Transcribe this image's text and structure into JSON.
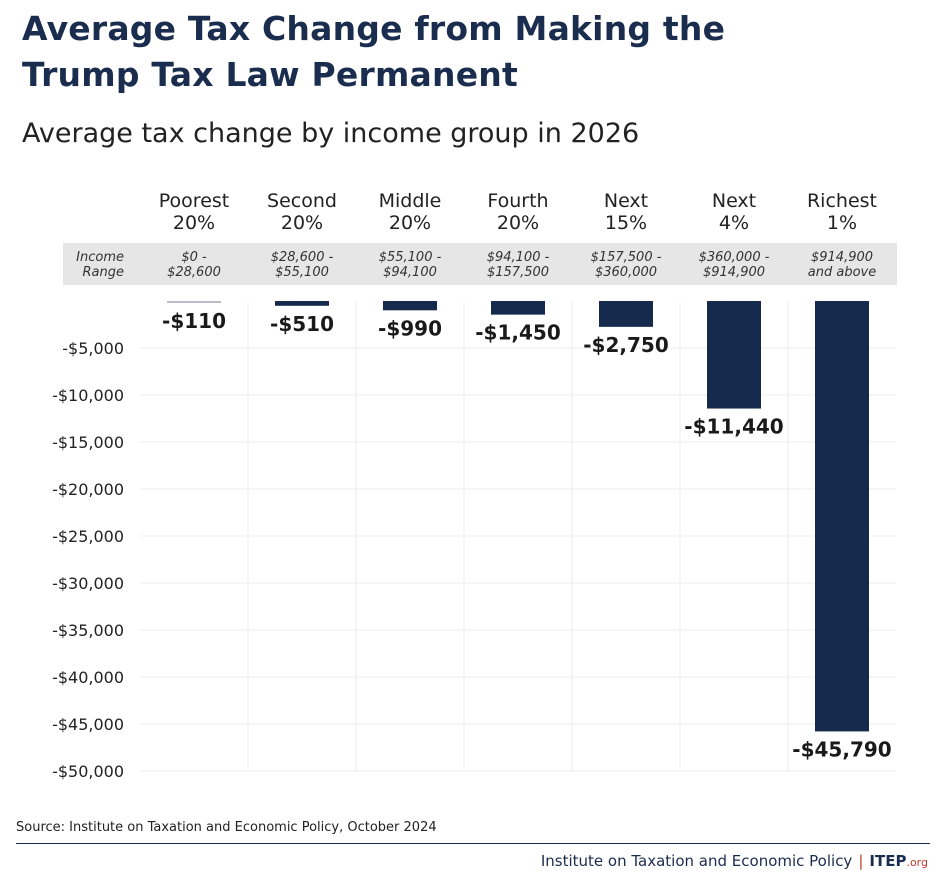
{
  "title_lines": [
    "Average Tax Change from Making the",
    "Trump Tax Law Permanent"
  ],
  "subtitle": "Average tax change by income group in 2026",
  "income_range_label": [
    "Income",
    "Range"
  ],
  "groups": [
    {
      "name": [
        "Poorest",
        "20%"
      ],
      "range": [
        "$0 -",
        "$28,600"
      ]
    },
    {
      "name": [
        "Second",
        "20%"
      ],
      "range": [
        "$28,600 -",
        "$55,100"
      ]
    },
    {
      "name": [
        "Middle",
        "20%"
      ],
      "range": [
        "$55,100 -",
        "$94,100"
      ]
    },
    {
      "name": [
        "Fourth",
        "20%"
      ],
      "range": [
        "$94,100 -",
        "$157,500"
      ]
    },
    {
      "name": [
        "Next",
        "15%"
      ],
      "range": [
        "$157,500 -",
        "$360,000"
      ]
    },
    {
      "name": [
        "Next",
        "4%"
      ],
      "range": [
        "$360,000 -",
        "$914,900"
      ]
    },
    {
      "name": [
        "Richest",
        "1%"
      ],
      "range": [
        "$914,900",
        "and above"
      ]
    }
  ],
  "chart_data": {
    "type": "bar",
    "categories": [
      "Poorest 20%",
      "Second 20%",
      "Middle 20%",
      "Fourth 20%",
      "Next 15%",
      "Next 4%",
      "Richest 1%"
    ],
    "values": [
      -110,
      -510,
      -990,
      -1450,
      -2750,
      -11440,
      -45790
    ],
    "data_labels": [
      "-$110",
      "-$510",
      "-$990",
      "-$1,450",
      "-$2,750",
      "-$11,440",
      "-$45,790"
    ],
    "ylim": [
      -50000,
      0
    ],
    "yticks": [
      -5000,
      -10000,
      -15000,
      -20000,
      -25000,
      -30000,
      -35000,
      -40000,
      -45000,
      -50000
    ],
    "ytick_labels": [
      "-$5,000",
      "-$10,000",
      "-$15,000",
      "-$20,000",
      "-$25,000",
      "-$30,000",
      "-$35,000",
      "-$40,000",
      "-$45,000",
      "-$50,000"
    ],
    "grid": true,
    "bar_color": "#152a4d",
    "first_bar_color": "#b9bccd"
  },
  "source": "Source: Institute on Taxation and Economic Policy, October 2024",
  "footer": {
    "org_name": "Institute on Taxation and Economic Policy",
    "separator": "|",
    "brand": "ITEP",
    "brand_suffix": ".org"
  }
}
